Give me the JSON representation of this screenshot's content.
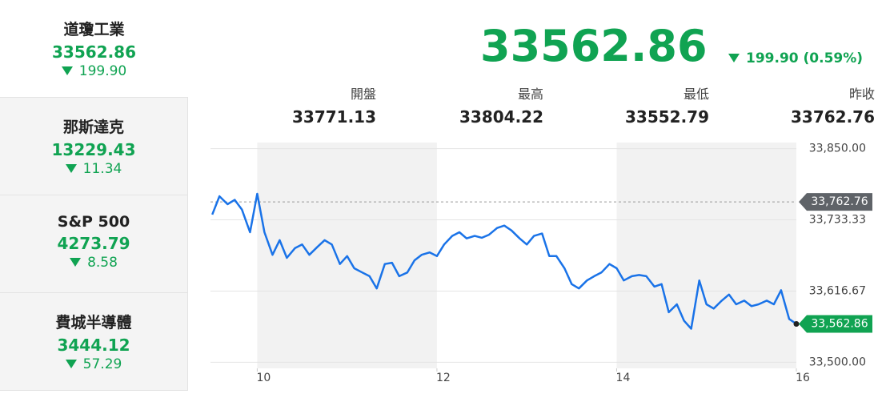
{
  "sidebar": [
    {
      "name": "道瓊工業",
      "value": "33562.86",
      "change": "199.90"
    },
    {
      "name": "那斯達克",
      "value": "13229.43",
      "change": "11.34"
    },
    {
      "name": "S&P 500",
      "value": "4273.79",
      "change": "8.58"
    },
    {
      "name": "費城半導體",
      "value": "3444.12",
      "change": "57.29"
    }
  ],
  "header": {
    "price": "33562.86",
    "change": "199.90 (0.59%)"
  },
  "stats": [
    {
      "label": "開盤",
      "value": "33771.13"
    },
    {
      "label": "最高",
      "value": "33804.22"
    },
    {
      "label": "最低",
      "value": "33552.79"
    },
    {
      "label": "昨收",
      "value": "33762.76"
    }
  ],
  "chart_data": {
    "type": "line",
    "x": [
      9.5,
      9.58,
      9.67,
      9.75,
      9.83,
      9.92,
      10,
      10.08,
      10.17,
      10.25,
      10.33,
      10.42,
      10.5,
      10.58,
      10.67,
      10.75,
      10.83,
      10.92,
      11,
      11.08,
      11.17,
      11.25,
      11.33,
      11.42,
      11.5,
      11.58,
      11.67,
      11.75,
      11.83,
      11.92,
      12,
      12.08,
      12.17,
      12.25,
      12.33,
      12.42,
      12.5,
      12.58,
      12.67,
      12.75,
      12.83,
      12.92,
      13,
      13.08,
      13.17,
      13.25,
      13.33,
      13.42,
      13.5,
      13.58,
      13.67,
      13.75,
      13.83,
      13.92,
      14,
      14.08,
      14.17,
      14.25,
      14.33,
      14.42,
      14.5,
      14.58,
      14.67,
      14.75,
      14.83,
      14.92,
      15,
      15.08,
      15.17,
      15.25,
      15.33,
      15.42,
      15.5,
      15.58,
      15.67,
      15.75,
      15.83,
      15.92,
      16
    ],
    "series": [
      {
        "color": "#1a73e8",
        "values": [
          33742,
          33772,
          33759,
          33766,
          33750,
          33713,
          33776,
          33713,
          33676,
          33700,
          33671,
          33687,
          33693,
          33676,
          33689,
          33700,
          33693,
          33661,
          33674,
          33654,
          33647,
          33641,
          33621,
          33661,
          33663,
          33641,
          33647,
          33667,
          33676,
          33680,
          33674,
          33693,
          33707,
          33713,
          33703,
          33707,
          33704,
          33709,
          33720,
          33724,
          33716,
          33703,
          33693,
          33707,
          33711,
          33674,
          33674,
          33654,
          33628,
          33621,
          33634,
          33641,
          33647,
          33661,
          33654,
          33634,
          33641,
          33643,
          33641,
          33624,
          33628,
          33582,
          33595,
          33568,
          33555,
          33634,
          33595,
          33588,
          33601,
          33611,
          33595,
          33601,
          33592,
          33595,
          33601,
          33595,
          33618,
          33571,
          33562.86
        ],
        "value_labels": [
          null,
          null,
          null,
          null,
          null,
          null,
          null,
          null,
          null,
          null,
          null,
          null,
          null,
          null,
          null,
          null,
          null,
          null,
          null,
          null,
          null,
          null,
          null,
          null,
          null,
          null,
          null,
          null,
          null,
          null,
          null,
          null,
          null,
          null,
          null,
          null,
          null,
          null,
          null,
          null,
          null,
          null,
          null,
          null,
          null,
          null,
          null,
          null,
          null,
          null,
          null,
          null,
          null,
          null,
          null,
          null,
          null,
          null,
          null,
          null,
          null,
          null,
          null,
          null,
          null,
          null,
          null,
          null,
          null,
          null,
          null,
          null,
          null,
          null,
          null,
          null,
          null,
          null,
          "33,562.86"
        ]
      }
    ],
    "xlim": [
      9.48,
      16
    ],
    "ylim": [
      33490,
      33860
    ],
    "xticks": [
      10,
      12,
      14,
      16
    ],
    "yticks": [
      {
        "value": 33500,
        "label": "33,500.00"
      },
      {
        "value": 33616.67,
        "label": "33,616.67"
      },
      {
        "value": 33733.33,
        "label": "33,733.33"
      },
      {
        "value": 33850,
        "label": "33,850.00"
      }
    ],
    "grid": true,
    "reference_line": {
      "value": 33762.76,
      "label": "33,762.76"
    }
  }
}
